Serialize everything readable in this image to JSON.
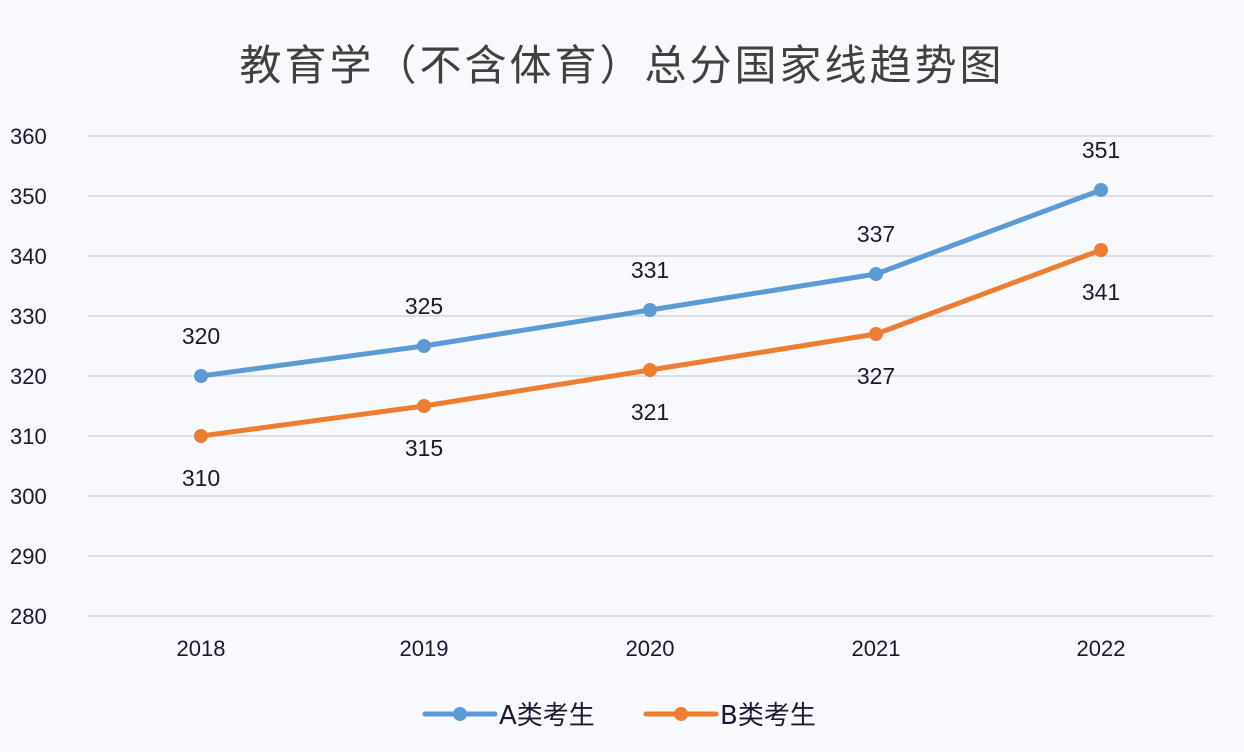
{
  "chart_data": {
    "type": "line",
    "title": "教育学（不含体育）总分国家线趋势图",
    "categories": [
      "2018",
      "2019",
      "2020",
      "2021",
      "2022"
    ],
    "series": [
      {
        "name": "A类考生",
        "values": [
          320,
          325,
          331,
          337,
          351
        ],
        "color": "#5b9bd5",
        "label_position": "above"
      },
      {
        "name": "B类考生",
        "values": [
          310,
          315,
          321,
          327,
          341
        ],
        "color": "#ed7d31",
        "label_position": "below"
      }
    ],
    "ylim": [
      280,
      360
    ],
    "yticks": [
      280,
      290,
      300,
      310,
      320,
      330,
      340,
      350,
      360
    ],
    "grid": true,
    "legend": "bottom",
    "xlabel": "",
    "ylabel": ""
  }
}
